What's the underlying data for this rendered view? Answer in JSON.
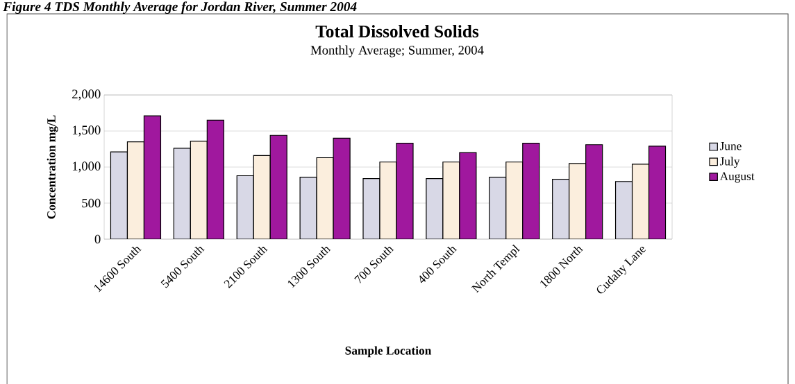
{
  "chart_data": {
    "type": "bar",
    "title": "Total Dissolved Solids",
    "subtitle": "Monthly Average; Summer, 2004",
    "xlabel": "Sample Location",
    "ylabel": "Concentration mg/L",
    "annotations": [
      "Figure 4 TDS Monthly Average for Jordan River, Summer 2004"
    ],
    "categories": [
      "14600 South",
      "5400 South",
      "2100 South",
      "1300 South",
      "700 South",
      "400 South",
      "North Templ",
      "1800 North",
      "Cudahy Lane"
    ],
    "series": [
      {
        "name": "June",
        "color": "#d8d8e6",
        "values": [
          1210,
          1260,
          880,
          860,
          840,
          840,
          860,
          830,
          800
        ]
      },
      {
        "name": "July",
        "color": "#fbeedd",
        "values": [
          1350,
          1360,
          1160,
          1130,
          1070,
          1070,
          1070,
          1050,
          1040
        ]
      },
      {
        "name": "August",
        "color": "#a0189e",
        "values": [
          1710,
          1650,
          1440,
          1400,
          1330,
          1200,
          1330,
          1310,
          1290
        ]
      }
    ],
    "ylim": [
      0,
      2000
    ],
    "yticks": [
      0,
      500,
      {
        "value": 1000,
        "label": "1,000"
      },
      {
        "value": 1500,
        "label": "1,500"
      },
      {
        "value": 2000,
        "label": "2,000"
      }
    ],
    "grid": "y",
    "legend": "right"
  }
}
